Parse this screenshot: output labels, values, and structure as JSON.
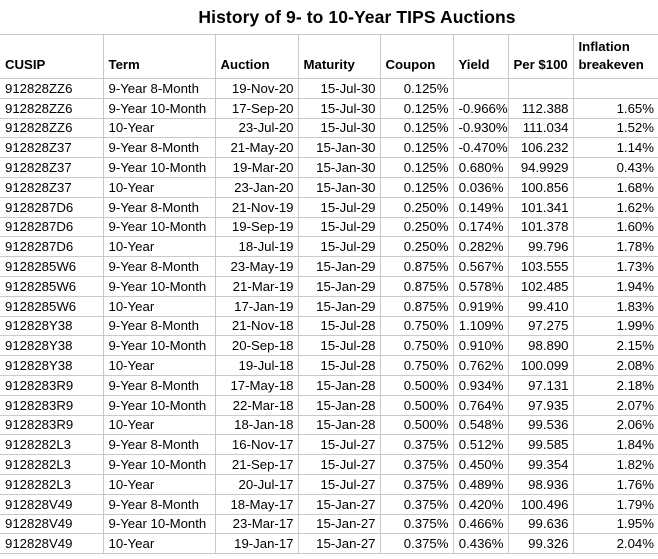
{
  "chart_data": {
    "type": "table",
    "title": "History of 9- to 10-Year TIPS Auctions",
    "columns": [
      {
        "key": "cusip",
        "label": "CUSIP",
        "align": "left"
      },
      {
        "key": "term",
        "label": "Term",
        "align": "left"
      },
      {
        "key": "auction",
        "label": "Auction",
        "align": "right"
      },
      {
        "key": "maturity",
        "label": "Maturity",
        "align": "right"
      },
      {
        "key": "coupon",
        "label": "Coupon",
        "align": "right"
      },
      {
        "key": "yield",
        "label": "Yield",
        "align": "right"
      },
      {
        "key": "per_100",
        "label": "Per $100",
        "align": "right"
      },
      {
        "key": "breakeven",
        "label": "Inflation breakeven",
        "align": "right"
      }
    ],
    "rows": [
      {
        "cusip": "912828ZZ6",
        "term": "9-Year 8-Month",
        "auction": "19-Nov-20",
        "maturity": "15-Jul-30",
        "coupon": "0.125%",
        "yield": "",
        "per_100": "",
        "breakeven": ""
      },
      {
        "cusip": "912828ZZ6",
        "term": "9-Year 10-Month",
        "auction": "17-Sep-20",
        "maturity": "15-Jul-30",
        "coupon": "0.125%",
        "yield": "-0.966%",
        "per_100": "112.388",
        "breakeven": "1.65%"
      },
      {
        "cusip": "912828ZZ6",
        "term": "10-Year",
        "auction": "23-Jul-20",
        "maturity": "15-Jul-30",
        "coupon": "0.125%",
        "yield": "-0.930%",
        "per_100": "111.034",
        "breakeven": "1.52%"
      },
      {
        "cusip": "912828Z37",
        "term": "9-Year 8-Month",
        "auction": "21-May-20",
        "maturity": "15-Jan-30",
        "coupon": "0.125%",
        "yield": "-0.470%",
        "per_100": "106.232",
        "breakeven": "1.14%"
      },
      {
        "cusip": "912828Z37",
        "term": "9-Year 10-Month",
        "auction": "19-Mar-20",
        "maturity": "15-Jan-30",
        "coupon": "0.125%",
        "yield": "0.680%",
        "per_100": "94.9929",
        "breakeven": "0.43%"
      },
      {
        "cusip": "912828Z37",
        "term": "10-Year",
        "auction": "23-Jan-20",
        "maturity": "15-Jan-30",
        "coupon": "0.125%",
        "yield": "0.036%",
        "per_100": "100.856",
        "breakeven": "1.68%"
      },
      {
        "cusip": "9128287D6",
        "term": "9-Year 8-Month",
        "auction": "21-Nov-19",
        "maturity": "15-Jul-29",
        "coupon": "0.250%",
        "yield": "0.149%",
        "per_100": "101.341",
        "breakeven": "1.62%"
      },
      {
        "cusip": "9128287D6",
        "term": "9-Year 10-Month",
        "auction": "19-Sep-19",
        "maturity": "15-Jul-29",
        "coupon": "0.250%",
        "yield": "0.174%",
        "per_100": "101.378",
        "breakeven": "1.60%"
      },
      {
        "cusip": "9128287D6",
        "term": "10-Year",
        "auction": "18-Jul-19",
        "maturity": "15-Jul-29",
        "coupon": "0.250%",
        "yield": "0.282%",
        "per_100": "99.796",
        "breakeven": "1.78%"
      },
      {
        "cusip": "9128285W6",
        "term": "9-Year 8-Month",
        "auction": "23-May-19",
        "maturity": "15-Jan-29",
        "coupon": "0.875%",
        "yield": "0.567%",
        "per_100": "103.555",
        "breakeven": "1.73%"
      },
      {
        "cusip": "9128285W6",
        "term": "9-Year 10-Month",
        "auction": "21-Mar-19",
        "maturity": "15-Jan-29",
        "coupon": "0.875%",
        "yield": "0.578%",
        "per_100": "102.485",
        "breakeven": "1.94%"
      },
      {
        "cusip": "9128285W6",
        "term": "10-Year",
        "auction": "17-Jan-19",
        "maturity": "15-Jan-29",
        "coupon": "0.875%",
        "yield": "0.919%",
        "per_100": "99.410",
        "breakeven": "1.83%"
      },
      {
        "cusip": "912828Y38",
        "term": "9-Year 8-Month",
        "auction": "21-Nov-18",
        "maturity": "15-Jul-28",
        "coupon": "0.750%",
        "yield": "1.109%",
        "per_100": "97.275",
        "breakeven": "1.99%"
      },
      {
        "cusip": "912828Y38",
        "term": "9-Year 10-Month",
        "auction": "20-Sep-18",
        "maturity": "15-Jul-28",
        "coupon": "0.750%",
        "yield": "0.910%",
        "per_100": "98.890",
        "breakeven": "2.15%"
      },
      {
        "cusip": "912828Y38",
        "term": "10-Year",
        "auction": "19-Jul-18",
        "maturity": "15-Jul-28",
        "coupon": "0.750%",
        "yield": "0.762%",
        "per_100": "100.099",
        "breakeven": "2.08%"
      },
      {
        "cusip": "9128283R9",
        "term": "9-Year 8-Month",
        "auction": "17-May-18",
        "maturity": "15-Jan-28",
        "coupon": "0.500%",
        "yield": "0.934%",
        "per_100": "97.131",
        "breakeven": "2.18%"
      },
      {
        "cusip": "9128283R9",
        "term": "9-Year 10-Month",
        "auction": "22-Mar-18",
        "maturity": "15-Jan-28",
        "coupon": "0.500%",
        "yield": "0.764%",
        "per_100": "97.935",
        "breakeven": "2.07%"
      },
      {
        "cusip": "9128283R9",
        "term": "10-Year",
        "auction": "18-Jan-18",
        "maturity": "15-Jan-28",
        "coupon": "0.500%",
        "yield": "0.548%",
        "per_100": "99.536",
        "breakeven": "2.06%"
      },
      {
        "cusip": "9128282L3",
        "term": "9-Year 8-Month",
        "auction": "16-Nov-17",
        "maturity": "15-Jul-27",
        "coupon": "0.375%",
        "yield": "0.512%",
        "per_100": "99.585",
        "breakeven": "1.84%"
      },
      {
        "cusip": "9128282L3",
        "term": "9-Year 10-Month",
        "auction": "21-Sep-17",
        "maturity": "15-Jul-27",
        "coupon": "0.375%",
        "yield": "0.450%",
        "per_100": "99.354",
        "breakeven": "1.82%"
      },
      {
        "cusip": "9128282L3",
        "term": "10-Year",
        "auction": "20-Jul-17",
        "maturity": "15-Jul-27",
        "coupon": "0.375%",
        "yield": "0.489%",
        "per_100": "98.936",
        "breakeven": "1.76%"
      },
      {
        "cusip": "912828V49",
        "term": "9-Year 8-Month",
        "auction": "18-May-17",
        "maturity": "15-Jan-27",
        "coupon": "0.375%",
        "yield": "0.420%",
        "per_100": "100.496",
        "breakeven": "1.79%"
      },
      {
        "cusip": "912828V49",
        "term": "9-Year 10-Month",
        "auction": "23-Mar-17",
        "maturity": "15-Jan-27",
        "coupon": "0.375%",
        "yield": "0.466%",
        "per_100": "99.636",
        "breakeven": "1.95%"
      },
      {
        "cusip": "912828V49",
        "term": "10-Year",
        "auction": "19-Jan-17",
        "maturity": "15-Jan-27",
        "coupon": "0.375%",
        "yield": "0.436%",
        "per_100": "99.326",
        "breakeven": "2.04%"
      }
    ],
    "layout": {
      "legend": "none",
      "grid": "on"
    }
  },
  "colors": {
    "gridline": "#c9c9c9",
    "text": "#000000",
    "background": "#ffffff"
  }
}
